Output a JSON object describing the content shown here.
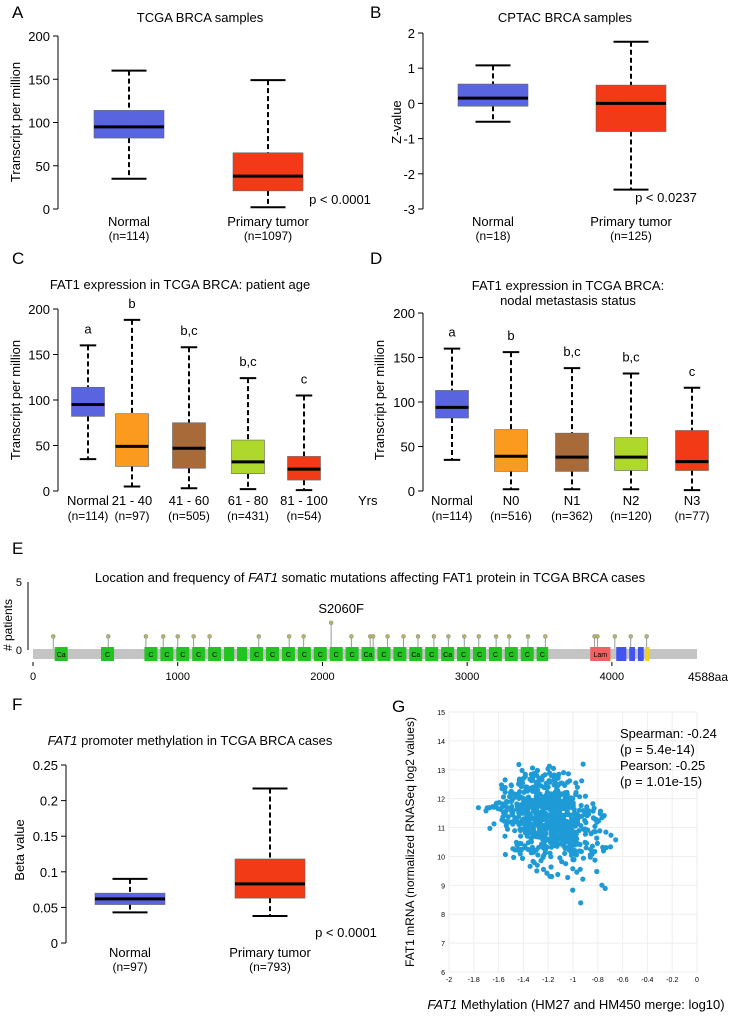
{
  "chart_data": [
    {
      "id": "A",
      "type": "box",
      "panel_label": "A",
      "title": "TCGA BRCA samples",
      "ylabel": "Transcript per million",
      "ylim": [
        0,
        200
      ],
      "yticks": [
        "0",
        "50",
        "100",
        "150",
        "200"
      ],
      "categories": [
        "Normal",
        "Primary tumor"
      ],
      "sample_sizes": [
        "(n=114)",
        "(n=1097)"
      ],
      "boxes": [
        {
          "min": 35,
          "q1": 82,
          "median": 95,
          "q3": 114,
          "max": 160,
          "color": "#5965e0"
        },
        {
          "min": 2,
          "q1": 21,
          "median": 38,
          "q3": 65,
          "max": 149,
          "color": "#f23a16"
        }
      ],
      "annotation": "p < 0.0001"
    },
    {
      "id": "B",
      "type": "box",
      "panel_label": "B",
      "title": "CPTAC BRCA samples",
      "ylabel": "Z-value",
      "ylim": [
        -3,
        2
      ],
      "yticks": [
        "-3",
        "-2",
        "-1",
        "0",
        "1",
        "2"
      ],
      "categories": [
        "Normal",
        "Primary tumor"
      ],
      "sample_sizes": [
        "(n=18)",
        "(n=125)"
      ],
      "boxes": [
        {
          "min": -0.52,
          "q1": -0.08,
          "median": 0.15,
          "q3": 0.55,
          "max": 1.08,
          "color": "#5965e0"
        },
        {
          "min": -2.45,
          "q1": -0.8,
          "median": 0.0,
          "q3": 0.52,
          "max": 1.75,
          "color": "#f23a16"
        }
      ],
      "annotation": "p < 0.0237"
    },
    {
      "id": "C",
      "type": "box",
      "panel_label": "C",
      "title": "FAT1 expression in TCGA BRCA: patient age",
      "ylabel": "Transcript per million",
      "ylim": [
        0,
        200
      ],
      "yticks": [
        "0",
        "50",
        "100",
        "150",
        "200"
      ],
      "categories": [
        "Normal",
        "21 - 40",
        "41 - 60",
        "61 - 80",
        "81 - 100"
      ],
      "axis_unit": "Yrs",
      "sample_sizes": [
        "(n=114)",
        "(n=97)",
        "(n=505)",
        "(n=431)",
        "(n=54)"
      ],
      "letters": [
        "a",
        "b",
        "b,c",
        "b,c",
        "c"
      ],
      "boxes": [
        {
          "min": 35,
          "q1": 82,
          "median": 95,
          "q3": 114,
          "max": 160,
          "color": "#5965e0"
        },
        {
          "min": 5,
          "q1": 27,
          "median": 49,
          "q3": 85,
          "max": 188,
          "color": "#fa9a1e"
        },
        {
          "min": 3,
          "q1": 25,
          "median": 47,
          "q3": 75,
          "max": 158,
          "color": "#a86a38"
        },
        {
          "min": 2,
          "q1": 19,
          "median": 32,
          "q3": 56,
          "max": 124,
          "color": "#aed82c"
        },
        {
          "min": 1,
          "q1": 12,
          "median": 24,
          "q3": 38,
          "max": 105,
          "color": "#f23a16"
        }
      ]
    },
    {
      "id": "D",
      "type": "box",
      "panel_label": "D",
      "title": "FAT1 expression in TCGA BRCA:",
      "subtitle": "nodal metastasis status",
      "ylabel": "Transcript per million",
      "ylim": [
        0,
        200
      ],
      "yticks": [
        "0",
        "50",
        "100",
        "150",
        "200"
      ],
      "categories": [
        "Normal",
        "N0",
        "N1",
        "N2",
        "N3"
      ],
      "sample_sizes": [
        "(n=114)",
        "(n=516)",
        "(n=362)",
        "(n=120)",
        "(n=77)"
      ],
      "letters": [
        "a",
        "b",
        "b,c",
        "b,c",
        "c"
      ],
      "boxes": [
        {
          "min": 35,
          "q1": 82,
          "median": 94,
          "q3": 113,
          "max": 160,
          "color": "#5965e0"
        },
        {
          "min": 2,
          "q1": 22,
          "median": 39,
          "q3": 69,
          "max": 156,
          "color": "#fa9a1e"
        },
        {
          "min": 2,
          "q1": 22,
          "median": 38,
          "q3": 65,
          "max": 138,
          "color": "#a86a38"
        },
        {
          "min": 2,
          "q1": 23,
          "median": 38,
          "q3": 60,
          "max": 132,
          "color": "#aed82c"
        },
        {
          "min": 1,
          "q1": 23,
          "median": 33,
          "q3": 68,
          "max": 116,
          "color": "#f23a16"
        }
      ]
    },
    {
      "id": "E",
      "type": "lollipop",
      "panel_label": "E",
      "title_prefix": "Location and frequency of ",
      "title_gene": "FAT1",
      "title_suffix": " somatic mutations affecting FAT1 protein in TCGA BRCA cases",
      "ylabel": "# patients",
      "ylim": [
        0,
        5
      ],
      "yticks": [
        "0",
        "5"
      ],
      "xlim": [
        0,
        4588
      ],
      "xticks": [
        0,
        1000,
        2000,
        3000,
        4000
      ],
      "xtick_labels": [
        "0",
        "1000",
        "2000",
        "3000",
        "4000"
      ],
      "length_label": "4588aa",
      "hotspot_label": "S2060F",
      "hotspot_position": 2060,
      "mutations": [
        {
          "pos": 140,
          "count": 1
        },
        {
          "pos": 520,
          "count": 1
        },
        {
          "pos": 780,
          "count": 1
        },
        {
          "pos": 900,
          "count": 1
        },
        {
          "pos": 1000,
          "count": 1
        },
        {
          "pos": 1110,
          "count": 1
        },
        {
          "pos": 1220,
          "count": 1
        },
        {
          "pos": 1560,
          "count": 1
        },
        {
          "pos": 1770,
          "count": 1
        },
        {
          "pos": 1870,
          "count": 1
        },
        {
          "pos": 2060,
          "count": 2
        },
        {
          "pos": 2200,
          "count": 1
        },
        {
          "pos": 2330,
          "count": 1
        },
        {
          "pos": 2350,
          "count": 1
        },
        {
          "pos": 2450,
          "count": 1
        },
        {
          "pos": 2560,
          "count": 1
        },
        {
          "pos": 2660,
          "count": 1
        },
        {
          "pos": 2770,
          "count": 1
        },
        {
          "pos": 2870,
          "count": 1
        },
        {
          "pos": 2980,
          "count": 1
        },
        {
          "pos": 3080,
          "count": 1
        },
        {
          "pos": 3200,
          "count": 1
        },
        {
          "pos": 3290,
          "count": 1
        },
        {
          "pos": 3420,
          "count": 1
        },
        {
          "pos": 3540,
          "count": 1
        },
        {
          "pos": 3880,
          "count": 1
        },
        {
          "pos": 3900,
          "count": 1
        },
        {
          "pos": 4020,
          "count": 1
        },
        {
          "pos": 4130,
          "count": 1
        },
        {
          "pos": 4240,
          "count": 1
        }
      ],
      "domains": [
        {
          "start": 150,
          "end": 240,
          "label": "Ca",
          "color": "#21c420"
        },
        {
          "start": 470,
          "end": 560,
          "label": "C",
          "color": "#21c420"
        },
        {
          "start": 770,
          "end": 860,
          "label": "C",
          "color": "#21c420"
        },
        {
          "start": 880,
          "end": 970,
          "label": "C",
          "color": "#21c420"
        },
        {
          "start": 990,
          "end": 1080,
          "label": "C",
          "color": "#21c420"
        },
        {
          "start": 1100,
          "end": 1190,
          "label": "C",
          "color": "#21c420"
        },
        {
          "start": 1210,
          "end": 1300,
          "label": "C",
          "color": "#21c420"
        },
        {
          "start": 1320,
          "end": 1390,
          "label": "",
          "color": "#21c420"
        },
        {
          "start": 1410,
          "end": 1480,
          "label": "",
          "color": "#21c420"
        },
        {
          "start": 1500,
          "end": 1590,
          "label": "C",
          "color": "#21c420"
        },
        {
          "start": 1610,
          "end": 1700,
          "label": "C",
          "color": "#21c420"
        },
        {
          "start": 1720,
          "end": 1810,
          "label": "C",
          "color": "#21c420"
        },
        {
          "start": 1830,
          "end": 1920,
          "label": "C",
          "color": "#21c420"
        },
        {
          "start": 1940,
          "end": 2030,
          "label": "C",
          "color": "#21c420"
        },
        {
          "start": 2050,
          "end": 2140,
          "label": "C",
          "color": "#21c420"
        },
        {
          "start": 2160,
          "end": 2250,
          "label": "C",
          "color": "#21c420"
        },
        {
          "start": 2270,
          "end": 2360,
          "label": "Ca",
          "color": "#21c420"
        },
        {
          "start": 2380,
          "end": 2470,
          "label": "C",
          "color": "#21c420"
        },
        {
          "start": 2490,
          "end": 2580,
          "label": "C",
          "color": "#21c420"
        },
        {
          "start": 2600,
          "end": 2690,
          "label": "Ca",
          "color": "#21c420"
        },
        {
          "start": 2710,
          "end": 2800,
          "label": "C",
          "color": "#21c420"
        },
        {
          "start": 2820,
          "end": 2910,
          "label": "Ca",
          "color": "#21c420"
        },
        {
          "start": 2930,
          "end": 3020,
          "label": "C",
          "color": "#21c420"
        },
        {
          "start": 3040,
          "end": 3130,
          "label": "C",
          "color": "#21c420"
        },
        {
          "start": 3150,
          "end": 3240,
          "label": "C",
          "color": "#21c420"
        },
        {
          "start": 3260,
          "end": 3350,
          "label": "C",
          "color": "#21c420"
        },
        {
          "start": 3370,
          "end": 3460,
          "label": "C",
          "color": "#21c420"
        },
        {
          "start": 3480,
          "end": 3560,
          "label": "C",
          "color": "#21c420"
        },
        {
          "start": 3850,
          "end": 3990,
          "label": "Lam",
          "color": "#f06060"
        },
        {
          "start": 4030,
          "end": 4100,
          "label": "",
          "color": "#4455ee"
        },
        {
          "start": 4120,
          "end": 4160,
          "label": "",
          "color": "#4455ee"
        },
        {
          "start": 4180,
          "end": 4220,
          "label": "",
          "color": "#4455ee"
        },
        {
          "start": 4230,
          "end": 4260,
          "label": "",
          "color": "#f0d020"
        }
      ]
    },
    {
      "id": "F",
      "type": "box",
      "panel_label": "F",
      "title_gene": "FAT1",
      "title_suffix": " promoter methylation in TCGA BRCA cases",
      "ylabel": "Beta value",
      "ylim": [
        0,
        0.25
      ],
      "yticks": [
        "0",
        "0.05",
        "0.1",
        "0.15",
        "0.2",
        "0.25"
      ],
      "categories": [
        "Normal",
        "Primary tumor"
      ],
      "sample_sizes": [
        "(n=97)",
        "(n=793)"
      ],
      "boxes": [
        {
          "min": 0.043,
          "q1": 0.054,
          "median": 0.062,
          "q3": 0.07,
          "max": 0.09,
          "color": "#5965e0"
        },
        {
          "min": 0.038,
          "q1": 0.063,
          "median": 0.083,
          "q3": 0.118,
          "max": 0.217,
          "color": "#f23a16"
        }
      ],
      "annotation": "p < 0.0001"
    },
    {
      "id": "G",
      "type": "scatter",
      "panel_label": "G",
      "xlabel_gene": "FAT1",
      "xlabel_suffix": " Methylation (HM27 and HM450 merge: log10)",
      "ylabel": "FAT1 mRNA (normalized RNASeq log2 values)",
      "xlim": [
        -2,
        0
      ],
      "ylim": [
        6,
        15
      ],
      "xticks": [
        "-2",
        "-1.8",
        "-1.6",
        "-1.4",
        "-1.2",
        "-1",
        "-0.8",
        "-0.6",
        "-0.4",
        "-0.2",
        "0"
      ],
      "yticks": [
        "6",
        "7",
        "8",
        "9",
        "10",
        "11",
        "12",
        "13",
        "14",
        "15"
      ],
      "stats": [
        "Spearman: -0.24",
        "(p = 5.4e-14)",
        "Pearson: -0.25",
        "(p = 1.01e-15)"
      ],
      "point_color": "#1e9bd7",
      "n_points": 780,
      "x_center": -1.2,
      "x_spread": 0.27,
      "y_center": 11.3,
      "y_spread": 1.05,
      "slope": -0.9,
      "seed": 7
    }
  ]
}
